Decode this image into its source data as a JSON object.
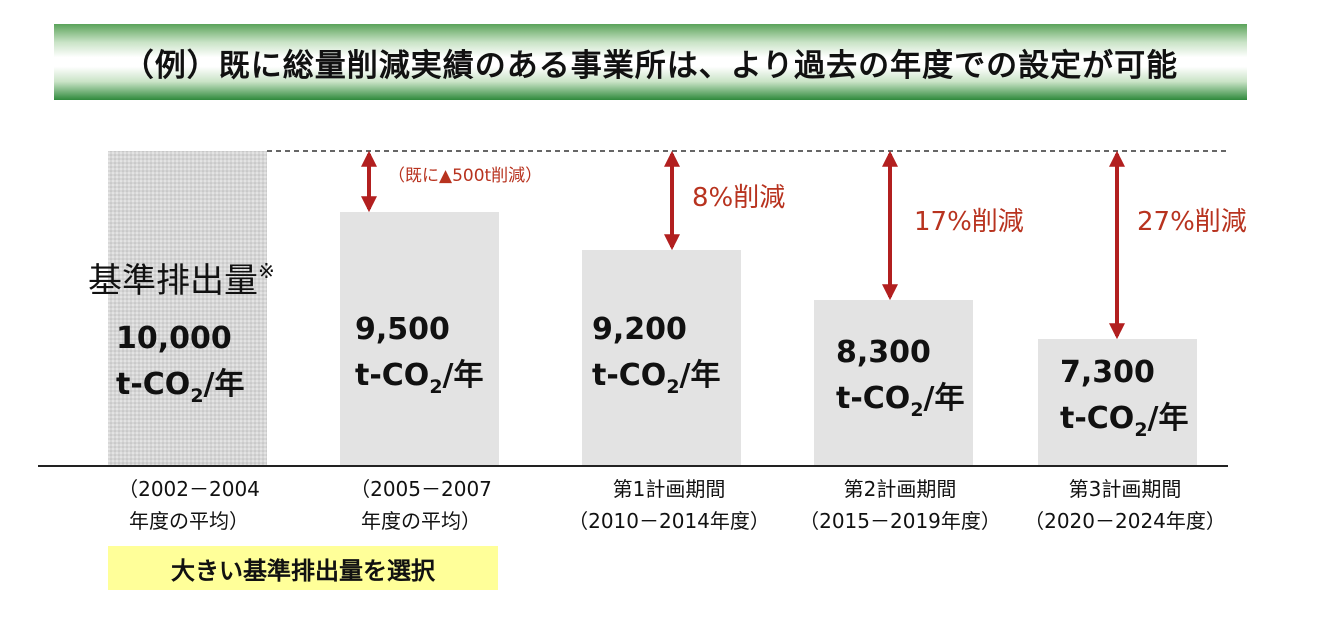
{
  "title": "（例）既に総量削減実績のある事業所は、より過去の年度での設定が可能",
  "baseline_label": "基準排出量",
  "baseline_mark": "※",
  "selection_note": "大きい基準排出量を選択",
  "unit_prefix": "t-CO",
  "unit_sub": "2",
  "unit_suffix": "/年",
  "chart_data": {
    "type": "bar",
    "categories": [
      [
        "（2002－2004",
        "年度の平均）"
      ],
      [
        "（2005－2007",
        "年度の平均）"
      ],
      [
        "第1計画期間",
        "（2010－2014年度）"
      ],
      [
        "第2計画期間",
        "（2015－2019年度）"
      ],
      [
        "第3計画期間",
        "（2020－2024年度）"
      ]
    ],
    "values": [
      10000,
      9500,
      9200,
      8300,
      7300
    ],
    "value_labels": [
      "10,000",
      "9,500",
      "9,200",
      "8,300",
      "7,300"
    ],
    "reductions": [
      "",
      "（既に▲500t削減）",
      "8%削減",
      "17%削減",
      "27%削減"
    ],
    "ylim": [
      0,
      10000
    ],
    "colors": {
      "baseline_bar": "#d8d8d8",
      "bar": "#e3e3e3",
      "arrow": "#b21f1f",
      "reduction_text": "#b8331f"
    }
  }
}
